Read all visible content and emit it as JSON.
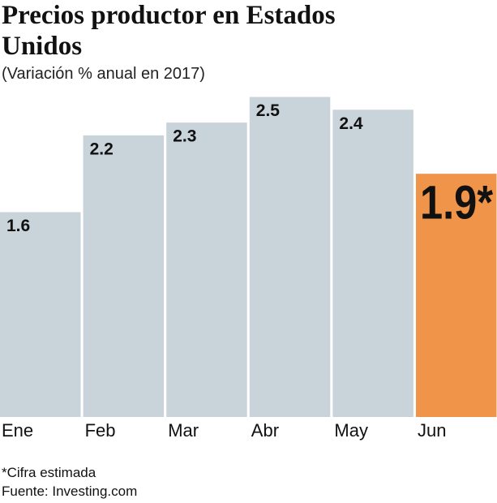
{
  "chart_data": {
    "type": "bar",
    "title": "Precios productor en Estados Unidos",
    "subtitle": "(Variación % anual en 2017)",
    "categories": [
      "Ene",
      "Feb",
      "Mar",
      "Abr",
      "May",
      "Jun"
    ],
    "values": [
      1.6,
      2.2,
      2.3,
      2.5,
      2.4,
      1.9
    ],
    "value_labels": [
      "1.6",
      "2.2",
      "2.3",
      "2.5",
      "2.4",
      "1.9*"
    ],
    "colors": [
      "#c9d3da",
      "#c9d3da",
      "#c9d3da",
      "#c9d3da",
      "#c9d3da",
      "#f0944a"
    ],
    "notes": [
      "*Cifra estimada",
      "Fuente: Investing.com"
    ]
  }
}
